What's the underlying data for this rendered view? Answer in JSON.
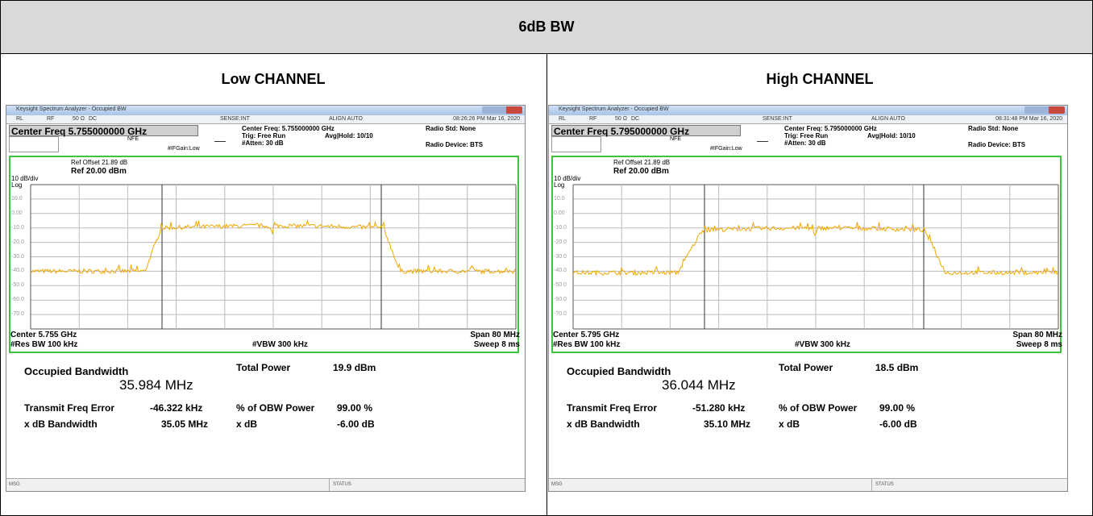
{
  "header": {
    "title": "6dB BW"
  },
  "panels": [
    {
      "title": "Low CHANNEL",
      "window_title": "Keysight Spectrum Analyzer - Occupied BW",
      "toolbar": [
        "RL",
        "RF",
        "50 Ω",
        "DC",
        "SENSE:INT",
        "ALIGN AUTO"
      ],
      "timestamp": "08:26:26 PM Mar 16, 2020",
      "center_freq_box": "Center Freq 5.755000000 GHz",
      "nfe": "NFE",
      "if_gain": "#IFGain:Low",
      "settings": [
        "Center Freq: 5.755000000 GHz",
        "Trig: Free Run",
        "#Atten: 30 dB"
      ],
      "avg_hold": "Avg|Hold: 10/10",
      "radio_std": "Radio Std: None",
      "radio_device": "Radio Device: BTS",
      "ref_offset": "Ref Offset 21.89 dB",
      "ref_level": "Ref 20.00 dBm",
      "scale": "10 dB/div",
      "scale_type": "Log",
      "y_labels": [
        "10.0",
        "0.00",
        "-10.0",
        "-20.0",
        "-30.0",
        "-40.0",
        "-50.0",
        "-60.0",
        "-70.0"
      ],
      "center": "Center  5.755 GHz",
      "res_bw": "#Res BW  100 kHz",
      "vbw": "#VBW  300 kHz",
      "span": "Span 80 MHz",
      "sweep": "Sweep  8 ms",
      "measurements": {
        "occupied_bandwidth_label": "Occupied Bandwidth",
        "occupied_bandwidth": "35.984 MHz",
        "total_power_label": "Total Power",
        "total_power": "19.9 dBm",
        "freq_error_label": "Transmit Freq Error",
        "freq_error": "-46.322 kHz",
        "obw_power_label": "% of OBW Power",
        "obw_power": "99.00 %",
        "xdb_bw_label": "x dB Bandwidth",
        "xdb_bw": "35.05 MHz",
        "xdb_label": "x dB",
        "xdb": "-6.00 dB"
      },
      "msg": "MSG",
      "status": "STATUS"
    },
    {
      "title": "High CHANNEL",
      "window_title": "Keysight Spectrum Analyzer - Occupied BW",
      "toolbar": [
        "RL",
        "RF",
        "50 Ω",
        "DC",
        "SENSE:INT",
        "ALIGN AUTO"
      ],
      "timestamp": "08:31:48 PM Mar 16, 2020",
      "center_freq_box": "Center Freq 5.795000000 GHz",
      "nfe": "NFE",
      "if_gain": "#IFGain:Low",
      "settings": [
        "Center Freq: 5.795000000 GHz",
        "Trig: Free Run",
        "#Atten: 30 dB"
      ],
      "avg_hold": "Avg|Hold: 10/10",
      "radio_std": "Radio Std: None",
      "radio_device": "Radio Device: BTS",
      "ref_offset": "Ref Offset 21.89 dB",
      "ref_level": "Ref 20.00 dBm",
      "scale": "10 dB/div",
      "scale_type": "Log",
      "y_labels": [
        "10.0",
        "0.00",
        "-10.0",
        "-20.0",
        "-30.0",
        "-40.0",
        "-50.0",
        "-60.0",
        "-70.0"
      ],
      "center": "Center  5.795 GHz",
      "res_bw": "#Res BW  100 kHz",
      "vbw": "#VBW  300 kHz",
      "span": "Span 80 MHz",
      "sweep": "Sweep  8 ms",
      "measurements": {
        "occupied_bandwidth_label": "Occupied Bandwidth",
        "occupied_bandwidth": "36.044 MHz",
        "total_power_label": "Total Power",
        "total_power": "18.5 dBm",
        "freq_error_label": "Transmit Freq Error",
        "freq_error": "-51.280 kHz",
        "obw_power_label": "% of OBW Power",
        "obw_power": "99.00 %",
        "xdb_bw_label": "x dB Bandwidth",
        "xdb_bw": "35.10 MHz",
        "xdb_label": "x dB",
        "xdb": "-6.00 dB"
      },
      "msg": "MSG",
      "status": "STATUS"
    }
  ]
}
